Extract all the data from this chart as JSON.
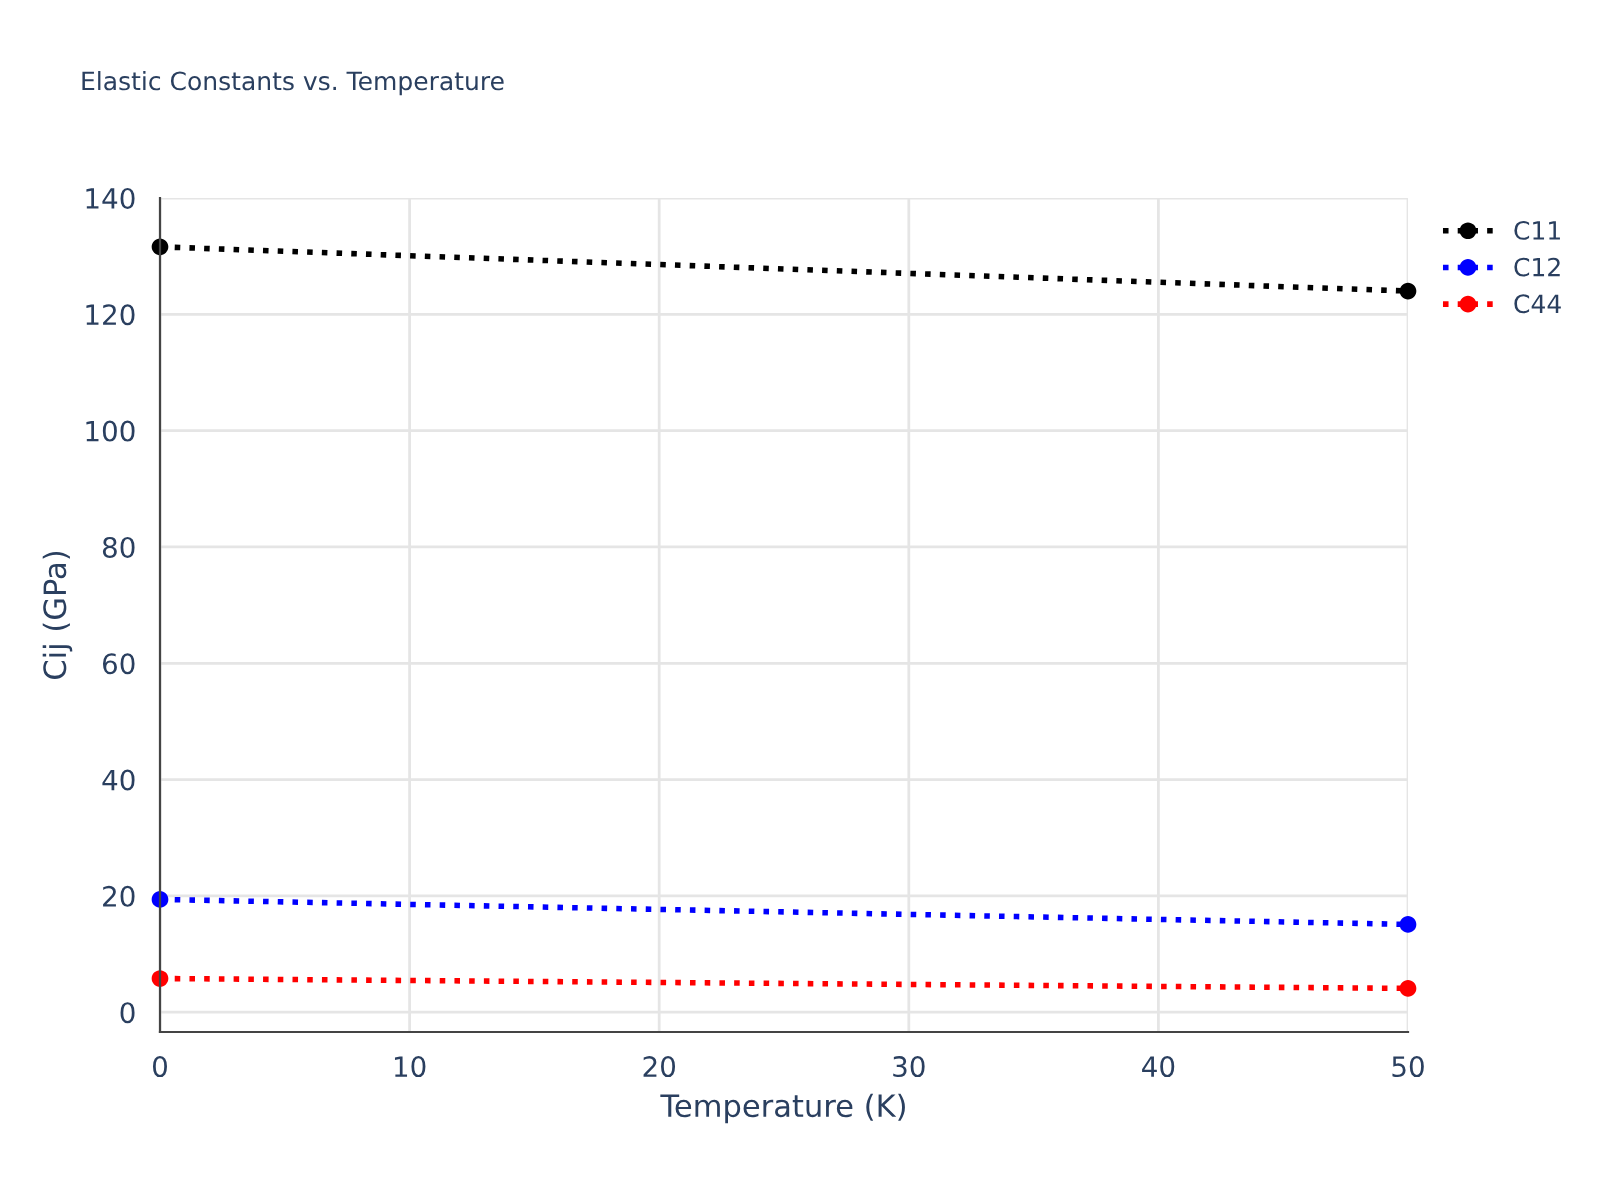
{
  "chart_data": {
    "type": "line",
    "title": "Elastic Constants vs. Temperature",
    "xlabel": "Temperature (K)",
    "ylabel": "Cij (GPa)",
    "x": [
      0,
      50
    ],
    "series": [
      {
        "name": "C11",
        "color": "#000000",
        "values": [
          131.6,
          124.0
        ]
      },
      {
        "name": "C12",
        "color": "#0000ff",
        "values": [
          19.4,
          15.1
        ]
      },
      {
        "name": "C44",
        "color": "#ff0000",
        "values": [
          5.8,
          4.1
        ]
      }
    ],
    "xlim": [
      0,
      50
    ],
    "xticks": [
      0,
      10,
      20,
      30,
      40,
      50
    ],
    "ylim": [
      -3.4,
      140
    ],
    "yticks": [
      0,
      20,
      40,
      60,
      80,
      100,
      120,
      140
    ],
    "grid": true,
    "legend": "top right",
    "marker": "circle",
    "line_style": "dotted"
  }
}
